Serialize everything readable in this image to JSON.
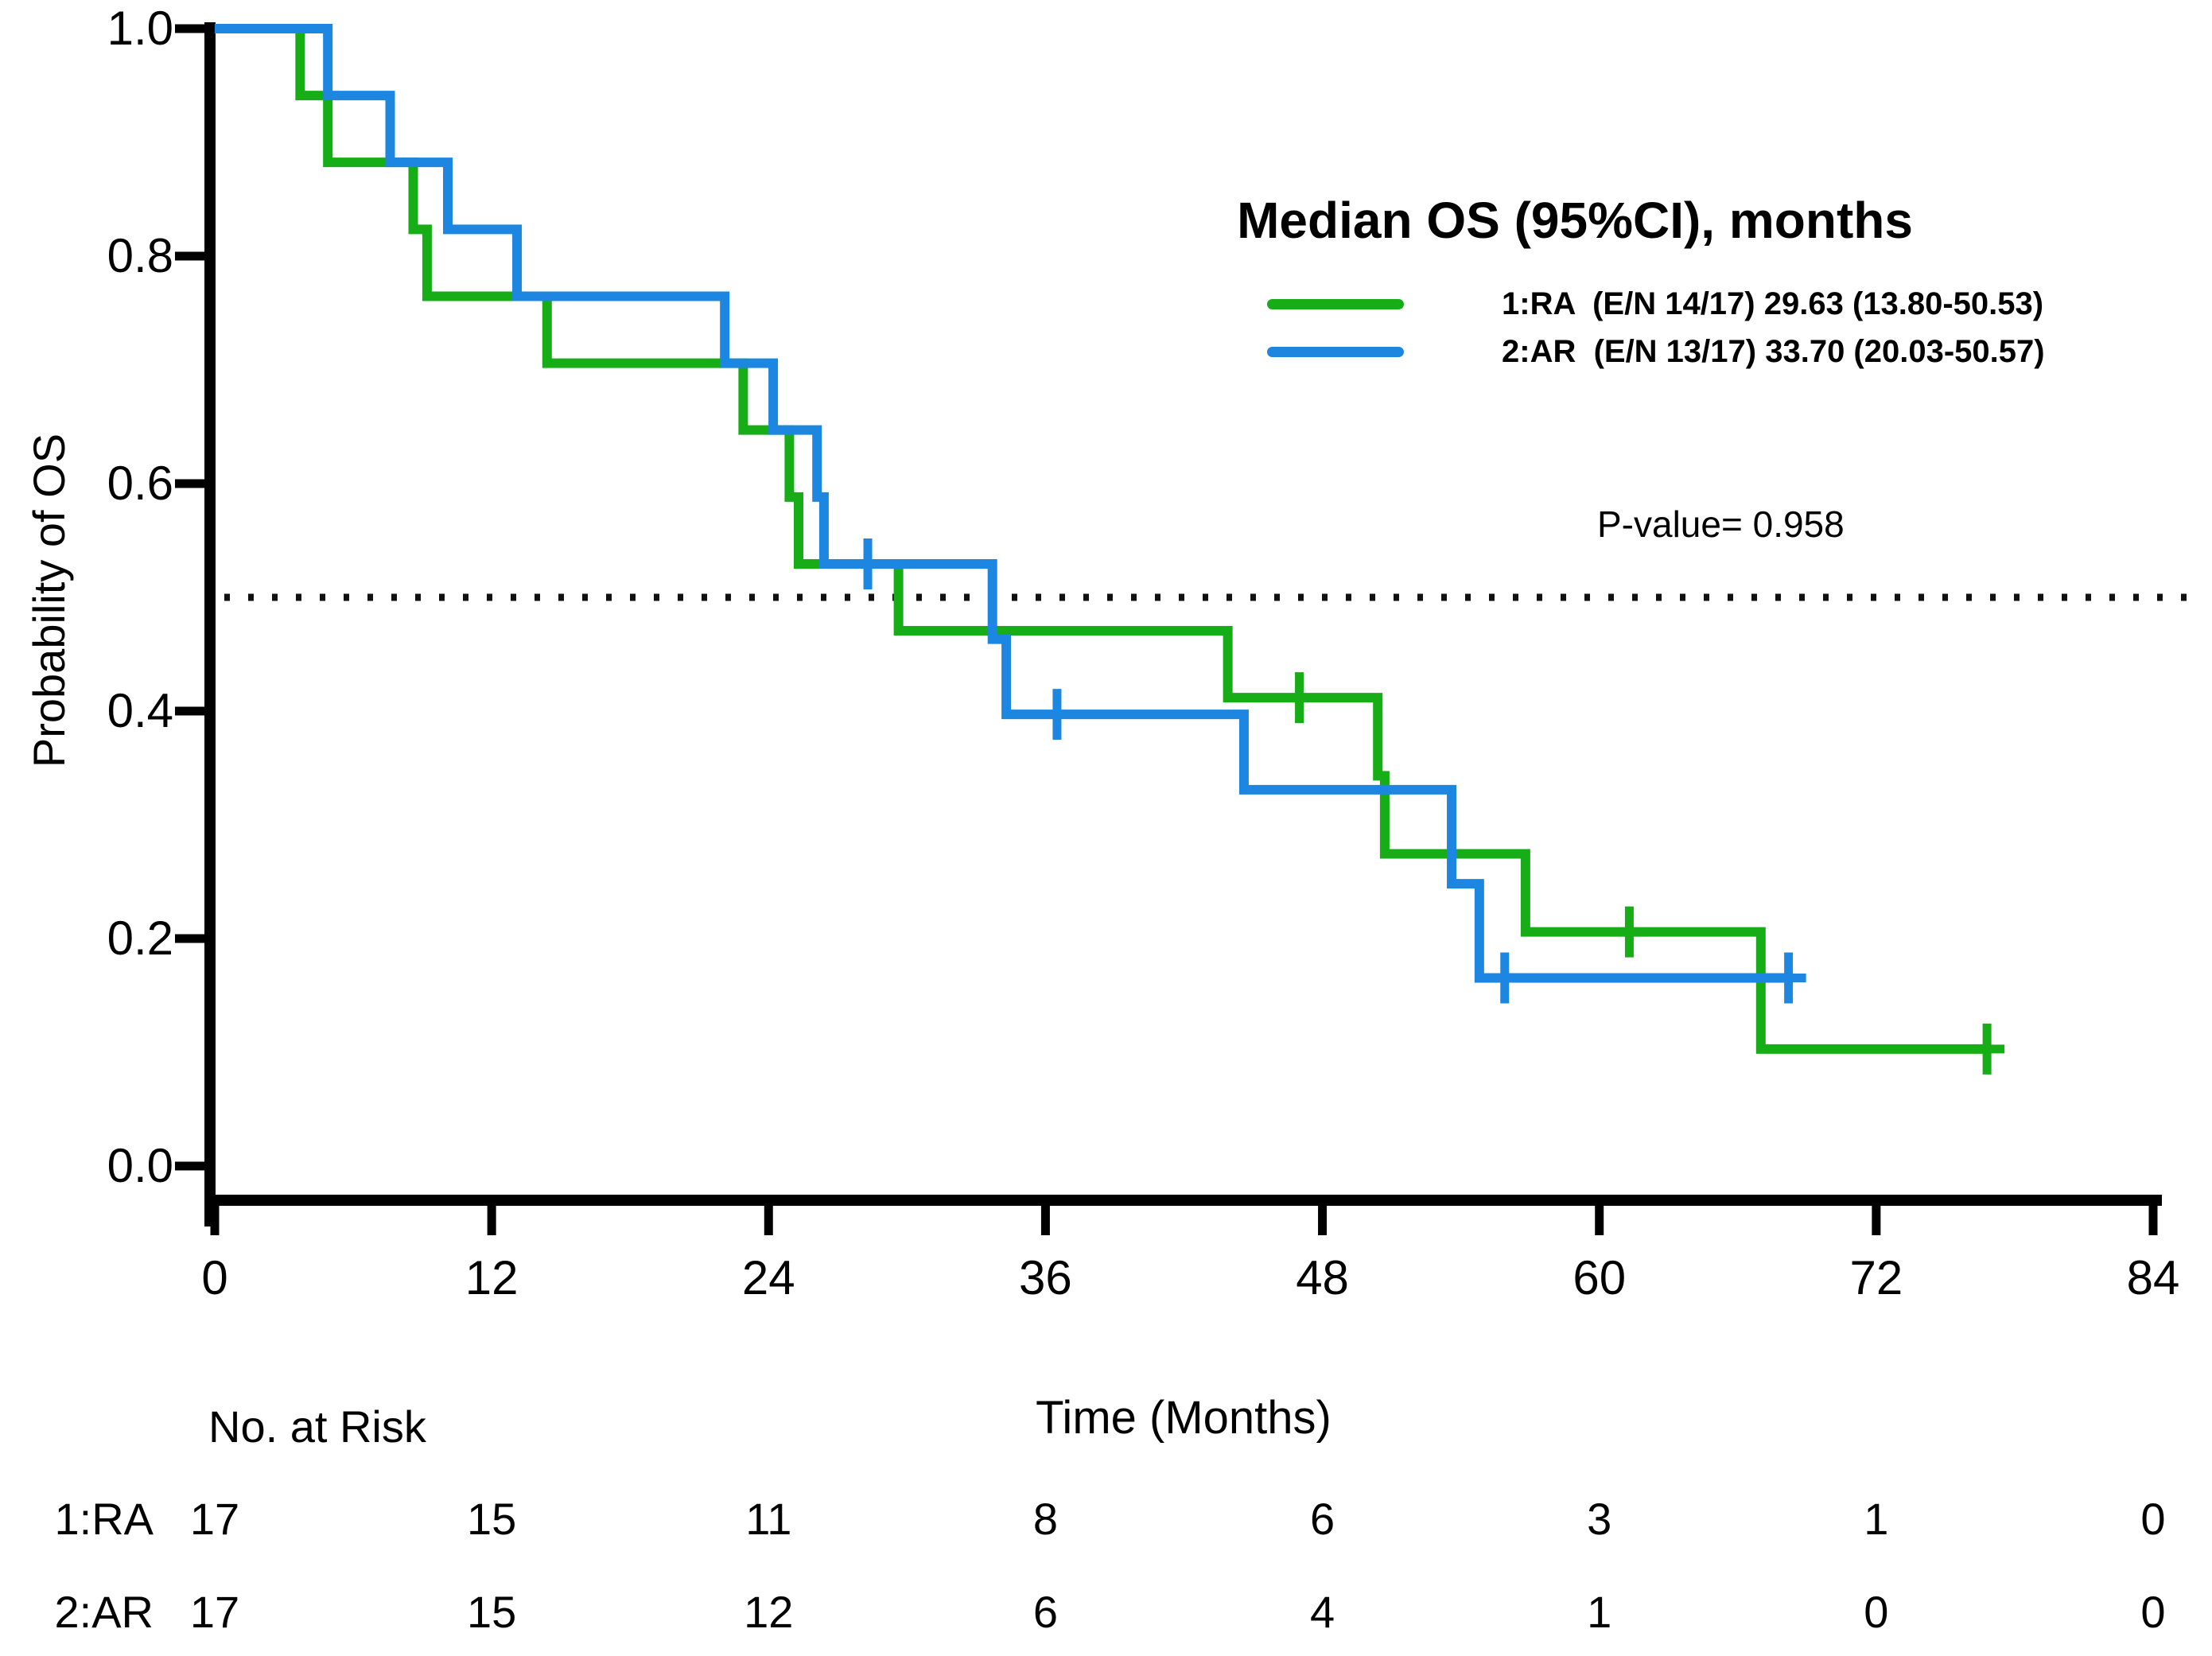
{
  "chart_data": {
    "type": "line",
    "subtype": "kaplan-meier-step",
    "ylabel": "Probability of OS",
    "xlabel": "Time (Months)",
    "xlim": [
      0,
      84
    ],
    "ylim": [
      0.0,
      1.0
    ],
    "xticks": [
      0,
      12,
      24,
      36,
      48,
      60,
      72,
      84
    ],
    "yticks": [
      "1.0",
      "0.8",
      "0.6",
      "0.4",
      "0.2",
      "0.0"
    ],
    "ytick_values": [
      1.0,
      0.8,
      0.6,
      0.4,
      0.2,
      0.0
    ],
    "grid": false,
    "reference_line": {
      "y": 0.5,
      "style": "dotted",
      "color": "#111111"
    },
    "legend": {
      "title": "Median OS (95%CI), months",
      "position": "top-right",
      "entries": [
        {
          "name": "1:RA",
          "label": "1:RA  (E/N 14/17) 29.63 (13.80-50.53)",
          "color": "#17AD17"
        },
        {
          "name": "2:AR",
          "label": "2:AR  (E/N 13/17) 33.70 (20.03-50.57)",
          "color": "#1C86E0"
        }
      ]
    },
    "annotation": {
      "pvalue_label": "P-value= 0.958"
    },
    "series": [
      {
        "name": "1:RA",
        "color": "#17AD17",
        "median_months": 29.63,
        "events_over_n": "14/17",
        "steps": [
          [
            0,
            1.0
          ],
          [
            3.7,
            0.9412
          ],
          [
            4.9,
            0.8824
          ],
          [
            8.6,
            0.8235
          ],
          [
            9.2,
            0.7647
          ],
          [
            14.4,
            0.7059
          ],
          [
            22.9,
            0.6471
          ],
          [
            24.9,
            0.5882
          ],
          [
            25.3,
            0.5294
          ],
          [
            29.63,
            0.4706
          ],
          [
            43.9,
            0.4118
          ],
          [
            50.4,
            0.3431
          ],
          [
            50.7,
            0.2745
          ],
          [
            56.8,
            0.2059
          ],
          [
            67.0,
            0.1029
          ]
        ],
        "end_time": 76.8,
        "censor_marks": [
          [
            47.0,
            0.4118
          ],
          [
            61.3,
            0.2059
          ],
          [
            76.8,
            0.1029
          ]
        ]
      },
      {
        "name": "2:AR",
        "color": "#1C86E0",
        "median_months": 33.7,
        "events_over_n": "13/17",
        "steps": [
          [
            0,
            1.0
          ],
          [
            4.9,
            0.9412
          ],
          [
            7.6,
            0.8824
          ],
          [
            10.1,
            0.8235
          ],
          [
            13.1,
            0.7647
          ],
          [
            22.1,
            0.7059
          ],
          [
            24.2,
            0.6471
          ],
          [
            26.1,
            0.5882
          ],
          [
            26.4,
            0.5294
          ],
          [
            33.7,
            0.4632
          ],
          [
            34.3,
            0.3971
          ],
          [
            44.6,
            0.3309
          ],
          [
            53.6,
            0.2482
          ],
          [
            54.8,
            0.1654
          ]
        ],
        "end_time": 68.2,
        "censor_marks": [
          [
            28.3,
            0.5294
          ],
          [
            36.5,
            0.3971
          ],
          [
            55.9,
            0.1654
          ],
          [
            68.2,
            0.1654
          ]
        ]
      }
    ],
    "risk_table": {
      "title": "No. at Risk",
      "time_points": [
        0,
        12,
        24,
        36,
        48,
        60,
        72,
        84
      ],
      "rows": [
        {
          "label": "1:RA",
          "values": [
            "17",
            "15",
            "11",
            "8",
            "6",
            "3",
            "1",
            "0"
          ]
        },
        {
          "label": "2:AR",
          "values": [
            "17",
            "15",
            "12",
            "6",
            "4",
            "1",
            "0",
            "0"
          ]
        }
      ]
    }
  }
}
